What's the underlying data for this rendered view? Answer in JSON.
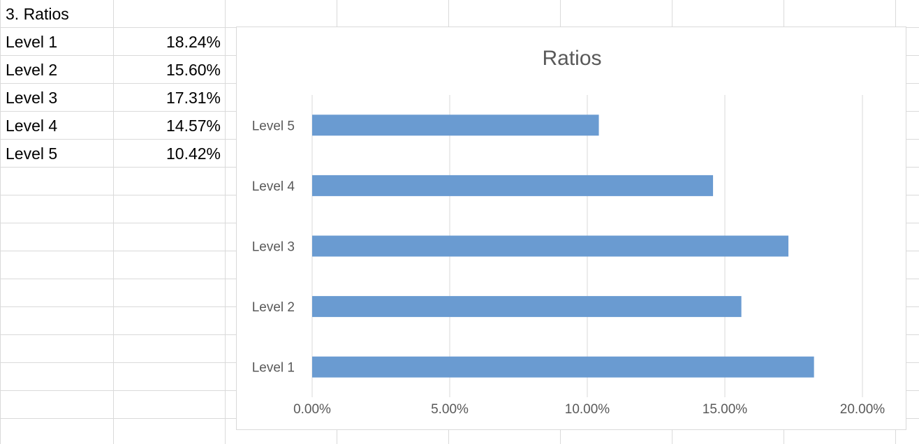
{
  "sheet": {
    "header": "3. Ratios",
    "rows": [
      {
        "label": "Level 1",
        "value": "18.24%"
      },
      {
        "label": "Level 2",
        "value": "15.60%"
      },
      {
        "label": "Level 3",
        "value": "17.31%"
      },
      {
        "label": "Level 4",
        "value": "14.57%"
      },
      {
        "label": "Level 5",
        "value": "10.42%"
      }
    ]
  },
  "chart_data": {
    "type": "bar",
    "orientation": "horizontal",
    "title": "Ratios",
    "categories": [
      "Level 1",
      "Level 2",
      "Level 3",
      "Level 4",
      "Level 5"
    ],
    "values": [
      18.24,
      15.6,
      17.31,
      14.57,
      10.42
    ],
    "unit": "%",
    "xlim": [
      0,
      20
    ],
    "x_ticks": [
      "0.00%",
      "5.00%",
      "10.00%",
      "15.00%",
      "20.00%"
    ],
    "grid": true,
    "legend": "none",
    "bar_color": "#6a9bd1"
  }
}
